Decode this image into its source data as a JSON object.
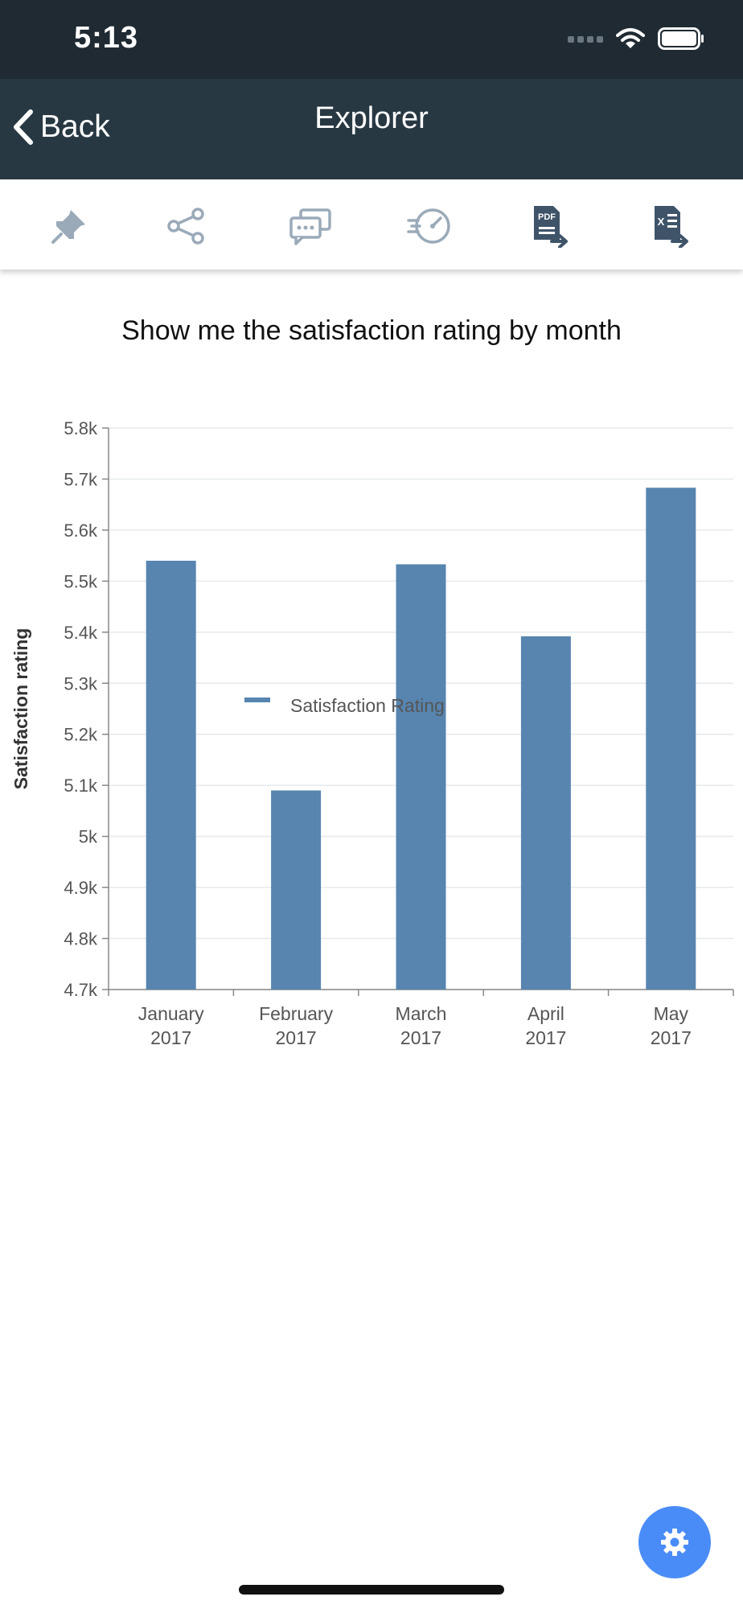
{
  "status_bar": {
    "time": "5:13"
  },
  "nav": {
    "back_label": "Back",
    "title": "Explorer"
  },
  "toolbar": {
    "items": [
      {
        "icon": "pin-icon"
      },
      {
        "icon": "share-icon"
      },
      {
        "icon": "comments-icon"
      },
      {
        "icon": "speed-gauge-icon"
      },
      {
        "icon": "export-pdf-icon",
        "badge": "PDF"
      },
      {
        "icon": "export-excel-icon",
        "badge": "X"
      }
    ]
  },
  "query": "Show me the satisfaction rating by month",
  "chart_data": {
    "type": "bar",
    "categories": [
      [
        "January",
        "2017"
      ],
      [
        "February",
        "2017"
      ],
      [
        "March",
        "2017"
      ],
      [
        "April",
        "2017"
      ],
      [
        "May",
        "2017"
      ]
    ],
    "series": [
      {
        "name": "Satisfaction Rating",
        "values": [
          5540,
          5090,
          5533,
          5392,
          5683
        ]
      }
    ],
    "ylabel": "Satisfaction rating",
    "xlabel": "",
    "ylim": [
      4700,
      5800
    ],
    "yticks": [
      {
        "value": 5800,
        "label": "5.8k"
      },
      {
        "value": 5700,
        "label": "5.7k"
      },
      {
        "value": 5600,
        "label": "5.6k"
      },
      {
        "value": 5500,
        "label": "5.5k"
      },
      {
        "value": 5400,
        "label": "5.4k"
      },
      {
        "value": 5300,
        "label": "5.3k"
      },
      {
        "value": 5200,
        "label": "5.2k"
      },
      {
        "value": 5100,
        "label": "5.1k"
      },
      {
        "value": 5000,
        "label": "5k"
      },
      {
        "value": 4900,
        "label": "4.9k"
      },
      {
        "value": 4800,
        "label": "4.8k"
      },
      {
        "value": 4700,
        "label": "4.7k"
      }
    ],
    "grid": true,
    "legend": "bottom",
    "color": "#5785b0"
  },
  "fab": {
    "icon": "gear-icon"
  }
}
